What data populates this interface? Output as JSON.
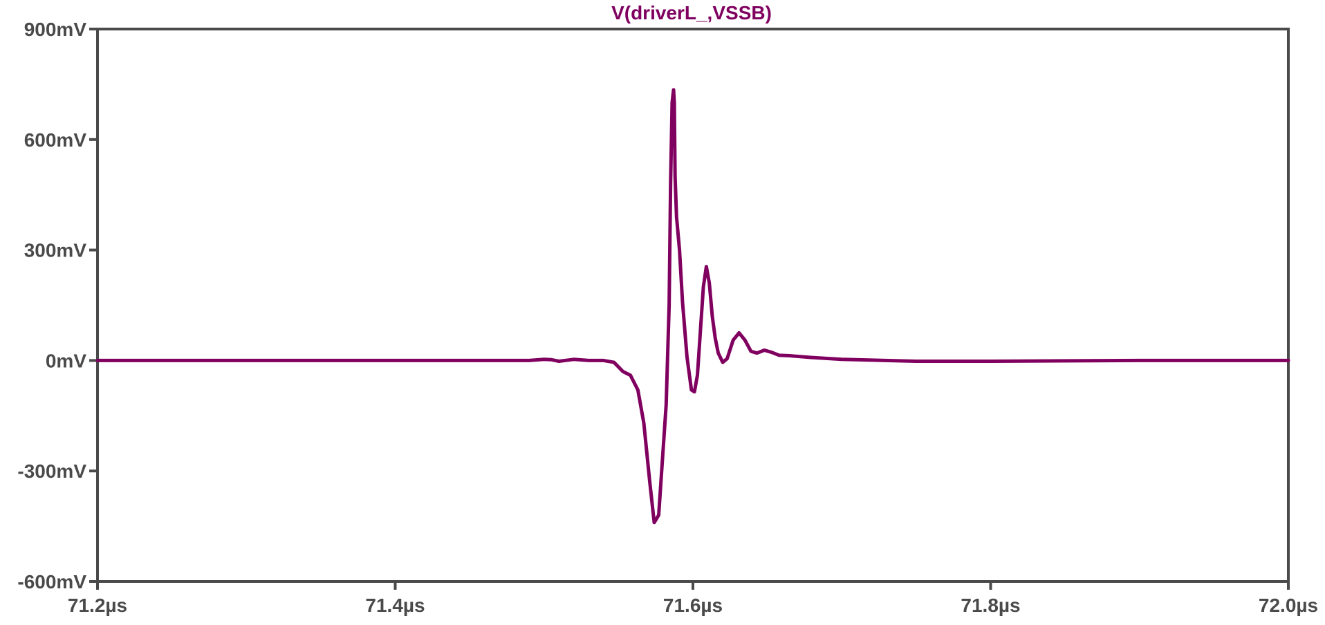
{
  "chart_data": {
    "type": "line",
    "title": "V(driverL_,VSSB)",
    "xlabel": "",
    "ylabel": "",
    "xlim": [
      71.2,
      72.0
    ],
    "ylim": [
      -600,
      900
    ],
    "x_unit": "µs",
    "y_unit": "mV",
    "x_ticks": [
      71.2,
      71.4,
      71.6,
      71.8,
      72.0
    ],
    "x_tick_labels": [
      "71.2µs",
      "71.4µs",
      "71.6µs",
      "71.8µs",
      "72.0µs"
    ],
    "y_ticks": [
      900,
      600,
      300,
      0,
      -300,
      -600
    ],
    "y_tick_labels": [
      "900mV",
      "600mV",
      "300mV",
      "0mV",
      "-300mV",
      "-600mV"
    ],
    "grid": false,
    "series": [
      {
        "name": "V(driverL_,VSSB)",
        "color": "#800060",
        "x": [
          71.2,
          71.3,
          71.4,
          71.49,
          71.5,
          71.505,
          71.51,
          71.52,
          71.53,
          71.54,
          71.547,
          71.553,
          71.558,
          71.563,
          71.567,
          71.571,
          71.574,
          71.577,
          71.579,
          71.582,
          71.584,
          71.585,
          71.586,
          71.587,
          71.5875,
          71.588,
          71.589,
          71.591,
          71.593,
          71.596,
          71.599,
          71.601,
          71.603,
          71.605,
          71.607,
          71.609,
          71.611,
          71.613,
          71.615,
          71.617,
          71.62,
          71.623,
          71.627,
          71.631,
          71.635,
          71.639,
          71.643,
          71.648,
          71.653,
          71.658,
          71.665,
          71.68,
          71.7,
          71.75,
          71.8,
          71.9,
          72.0
        ],
        "y": [
          0,
          0,
          0,
          0,
          3,
          2,
          -2,
          3,
          0,
          0,
          -5,
          -30,
          -40,
          -80,
          -170,
          -330,
          -440,
          -420,
          -300,
          -120,
          150,
          480,
          700,
          735,
          700,
          500,
          390,
          300,
          160,
          10,
          -80,
          -85,
          -40,
          80,
          200,
          255,
          210,
          120,
          60,
          20,
          -5,
          5,
          55,
          75,
          55,
          25,
          20,
          28,
          22,
          14,
          13,
          8,
          3,
          -2,
          -2,
          0,
          0
        ]
      }
    ]
  }
}
